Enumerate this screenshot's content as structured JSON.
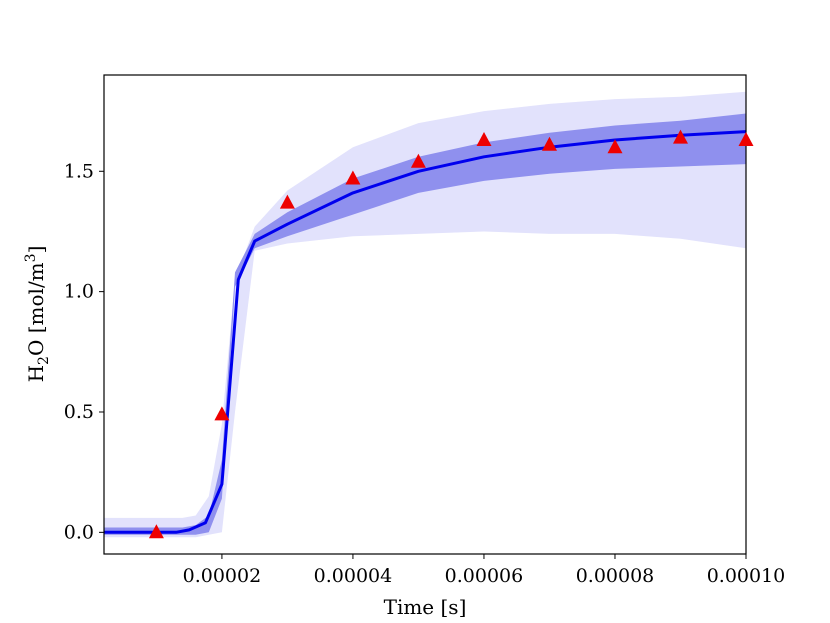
{
  "chart_data": {
    "type": "line",
    "title": "",
    "xlabel": "Time [s]",
    "ylabel_parts": {
      "a": "H",
      "b": "2",
      "c": "O [mol/m",
      "d": "3",
      "e": "]"
    },
    "xlim": [
      2e-06,
      0.0001
    ],
    "ylim": [
      -0.09,
      1.9
    ],
    "x_ticks": [
      {
        "value": 2e-05,
        "label": "0.00002"
      },
      {
        "value": 4e-05,
        "label": "0.00004"
      },
      {
        "value": 6e-05,
        "label": "0.00006"
      },
      {
        "value": 8e-05,
        "label": "0.00008"
      },
      {
        "value": 0.0001,
        "label": "0.00010"
      }
    ],
    "y_ticks": [
      {
        "value": 0.0,
        "label": "0.0"
      },
      {
        "value": 0.5,
        "label": "0.5"
      },
      {
        "value": 1.0,
        "label": "1.0"
      },
      {
        "value": 1.5,
        "label": "1.5"
      }
    ],
    "grid": false,
    "legend": "none",
    "colors": {
      "mean_line": "#0000ee",
      "inner_band": "#8f90ee",
      "outer_band": "#e2e2fc",
      "markers": "#ee0000"
    },
    "series": [
      {
        "kind": "band",
        "level": "outer",
        "x": [
          2e-06,
          6e-06,
          1e-05,
          1.4e-05,
          1.6e-05,
          1.8e-05,
          2e-05,
          2.2e-05,
          2.5e-05,
          3e-05,
          4e-05,
          5e-05,
          6e-05,
          7e-05,
          8e-05,
          9e-05,
          0.0001
        ],
        "upper": [
          0.06,
          0.06,
          0.06,
          0.06,
          0.07,
          0.15,
          0.45,
          1.05,
          1.27,
          1.42,
          1.6,
          1.7,
          1.75,
          1.78,
          1.8,
          1.81,
          1.83
        ],
        "lower": [
          -0.02,
          -0.02,
          -0.02,
          -0.02,
          -0.02,
          -0.01,
          0.0,
          0.5,
          1.17,
          1.2,
          1.23,
          1.24,
          1.25,
          1.24,
          1.24,
          1.22,
          1.18
        ]
      },
      {
        "kind": "band",
        "level": "inner",
        "x": [
          2e-06,
          6e-06,
          1e-05,
          1.4e-05,
          1.6e-05,
          1.8e-05,
          2e-05,
          2.2e-05,
          2.5e-05,
          3e-05,
          4e-05,
          5e-05,
          6e-05,
          7e-05,
          8e-05,
          9e-05,
          0.0001
        ],
        "upper": [
          0.02,
          0.02,
          0.02,
          0.02,
          0.03,
          0.07,
          0.3,
          1.08,
          1.24,
          1.33,
          1.47,
          1.56,
          1.62,
          1.66,
          1.69,
          1.71,
          1.74
        ],
        "lower": [
          -0.01,
          -0.01,
          -0.01,
          -0.01,
          -0.01,
          0.0,
          0.14,
          1.02,
          1.18,
          1.23,
          1.32,
          1.41,
          1.46,
          1.49,
          1.51,
          1.52,
          1.53
        ]
      },
      {
        "kind": "line",
        "x": [
          2e-06,
          6e-06,
          1e-05,
          1.3e-05,
          1.5e-05,
          1.75e-05,
          2e-05,
          2.25e-05,
          2.5e-05,
          3e-05,
          4e-05,
          5e-05,
          6e-05,
          7e-05,
          8e-05,
          9e-05,
          0.0001
        ],
        "y": [
          0.0,
          0.0,
          0.0,
          0.0,
          0.01,
          0.04,
          0.2,
          1.05,
          1.21,
          1.28,
          1.41,
          1.5,
          1.56,
          1.6,
          1.63,
          1.65,
          1.665
        ]
      },
      {
        "kind": "scatter",
        "marker": "triangle",
        "x": [
          1e-05,
          2e-05,
          3e-05,
          4e-05,
          5e-05,
          6e-05,
          7e-05,
          8e-05,
          9e-05,
          0.0001
        ],
        "y": [
          0.0,
          0.49,
          1.37,
          1.47,
          1.54,
          1.63,
          1.61,
          1.6,
          1.64,
          1.63
        ]
      }
    ]
  }
}
